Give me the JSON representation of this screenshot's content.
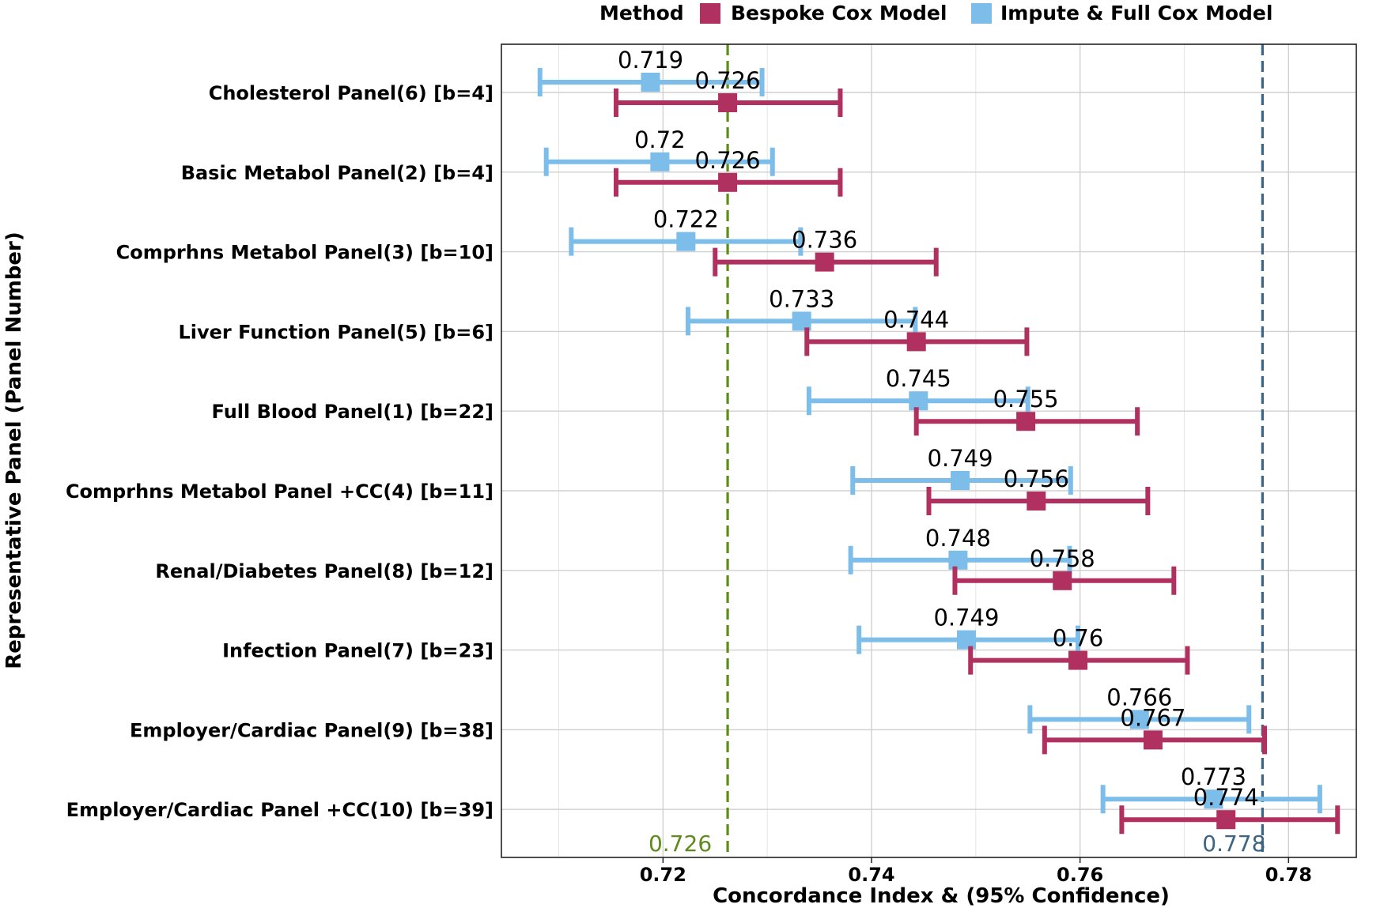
{
  "chart_data": {
    "type": "forest",
    "xlabel": "Concordance Index & (95% Confidence)",
    "ylabel": "Representative Panel (Panel Number)",
    "xlim": [
      0.7045,
      0.7865
    ],
    "xticks": [
      0.72,
      0.74,
      0.76,
      0.78
    ],
    "xtick_labels": [
      "0.72",
      "0.74",
      "0.76",
      "0.78"
    ],
    "minor_xticks": [
      0.71,
      0.73,
      0.75,
      0.77
    ],
    "grid": true,
    "legend": {
      "title": "Method",
      "position": "top",
      "entries": [
        {
          "name": "Bespoke Cox Model",
          "color": "#b03060"
        },
        {
          "name": "Impute & Full Cox Model",
          "color": "#7cbde9"
        }
      ]
    },
    "categories": [
      "Cholesterol Panel(6) [b=4]",
      "Basic Metabol Panel(2) [b=4]",
      "Comprhns Metabol Panel(3) [b=10]",
      "Liver Function Panel(5) [b=6]",
      "Full Blood Panel(1) [b=22]",
      "Comprhns Metabol Panel +CC(4) [b=11]",
      "Renal/Diabetes Panel(8) [b=12]",
      "Infection Panel(7) [b=23]",
      "Employer/Cardiac Panel(9) [b=38]",
      "Employer/Cardiac Panel +CC(10) [b=39]"
    ],
    "series": [
      {
        "name": "Impute & Full Cox Model",
        "color": "#7cbde9",
        "values": [
          0.7188,
          0.7197,
          0.7222,
          0.7333,
          0.7445,
          0.7485,
          0.7483,
          0.7491,
          0.7657,
          0.7728
        ],
        "lower": [
          0.7082,
          0.7088,
          0.7112,
          0.7224,
          0.734,
          0.7382,
          0.738,
          0.7388,
          0.7552,
          0.7622
        ],
        "upper": [
          0.7295,
          0.7305,
          0.7332,
          0.7442,
          0.755,
          0.7591,
          0.759,
          0.7598,
          0.7762,
          0.783
        ],
        "labels": [
          "0.719",
          "0.72",
          "0.722",
          "0.733",
          "0.745",
          "0.749",
          "0.748",
          "0.749",
          "0.766",
          "0.773"
        ]
      },
      {
        "name": "Bespoke Cox Model",
        "color": "#b03060",
        "values": [
          0.7262,
          0.7262,
          0.7355,
          0.7443,
          0.7548,
          0.7558,
          0.7583,
          0.7598,
          0.767,
          0.774
        ],
        "lower": [
          0.7155,
          0.7155,
          0.725,
          0.7338,
          0.7443,
          0.7455,
          0.748,
          0.7495,
          0.7566,
          0.764
        ],
        "upper": [
          0.737,
          0.737,
          0.7462,
          0.7549,
          0.7655,
          0.7665,
          0.769,
          0.7703,
          0.7777,
          0.7847
        ],
        "labels": [
          "0.726",
          "0.726",
          "0.736",
          "0.744",
          "0.755",
          "0.756",
          "0.758",
          "0.76",
          "0.767",
          "0.774"
        ]
      }
    ],
    "reference_lines": [
      {
        "value": 0.7262,
        "label": "0.726",
        "color": "#5f8a1c"
      },
      {
        "value": 0.7775,
        "label": "0.778",
        "color": "#3d6483"
      }
    ]
  }
}
